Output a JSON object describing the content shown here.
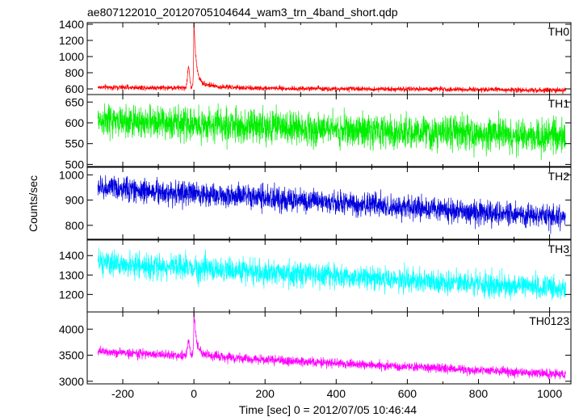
{
  "chart_data": {
    "type": "line",
    "title": "ae807122010_20120705104644_wam3_trn_4band_short.qdp",
    "xlabel": "Time [sec] 0 = 2012/07/05 10:46:44",
    "ylabel": "Counts/sec",
    "xlim": [
      -300,
      1060
    ],
    "xticks": [
      -200,
      0,
      200,
      400,
      600,
      800,
      1000
    ],
    "x_range_data": [
      -270,
      1045
    ],
    "grid": false,
    "series": [
      {
        "name": "TH0",
        "color": "#ff0000",
        "ylim": [
          530,
          1420
        ],
        "yticks": [
          600,
          800,
          1000,
          1200,
          1400
        ],
        "baseline_start": 620,
        "baseline_end": 585,
        "noise": 30,
        "burst": {
          "t": 0,
          "peak": 1420,
          "precursor_t": -15,
          "precursor_peak": 880,
          "decay_sec": 40
        }
      },
      {
        "name": "TH1",
        "color": "#00ee00",
        "ylim": [
          495,
          668
        ],
        "yticks": [
          500,
          550,
          600,
          650
        ],
        "baseline_start": 605,
        "baseline_end": 565,
        "noise": 38
      },
      {
        "name": "TH2",
        "color": "#0000dd",
        "ylim": [
          745,
          1030
        ],
        "yticks": [
          800,
          900,
          1000
        ],
        "baseline_start": 950,
        "baseline_end": 830,
        "noise": 45
      },
      {
        "name": "TH3",
        "color": "#00ffff",
        "ylim": [
          1110,
          1480
        ],
        "yticks": [
          1200,
          1300,
          1400
        ],
        "baseline_start": 1360,
        "baseline_end": 1230,
        "noise": 60
      },
      {
        "name": "TH0123",
        "color": "#ff00ff",
        "ylim": [
          2950,
          4330
        ],
        "yticks": [
          3000,
          3500,
          4000
        ],
        "baseline_start": 3570,
        "baseline_end": 3130,
        "noise": 85,
        "burst": {
          "t": 0,
          "peak": 4330,
          "precursor_t": -15,
          "precursor_peak": 3780,
          "decay_sec": 40
        }
      }
    ]
  }
}
